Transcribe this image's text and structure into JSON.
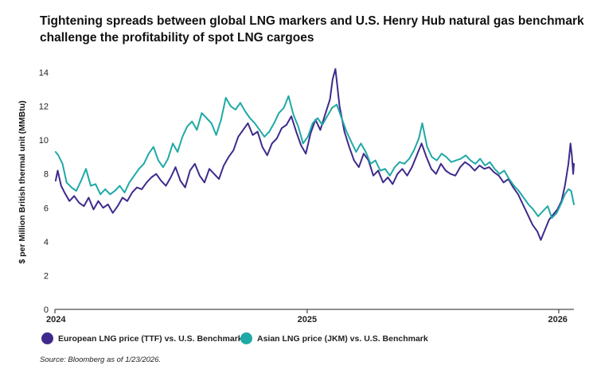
{
  "title": {
    "line1": "Tightening spreads between global LNG markers and U.S. Henry Hub natural gas benchmark",
    "line2": "challenge the profitability of spot LNG cargoes"
  },
  "source": "Source: Bloomberg as of 1/23/2026.",
  "colors": {
    "ttf": "#3f2a8c",
    "jkm": "#1fa9a6",
    "axis": "#222222"
  },
  "chart_data": {
    "type": "line",
    "title": "Tightening spreads between global LNG markers and U.S. Henry Hub natural gas benchmark challenge the profitability of spot LNG cargoes",
    "xlabel": "",
    "ylabel": "$ per Million British thermal unit (MMBtu)",
    "ylim": [
      0,
      14
    ],
    "yticks": [
      0,
      2,
      4,
      6,
      8,
      10,
      12,
      14
    ],
    "xlim": [
      "2024-01-01",
      "2026-01-23"
    ],
    "xticks": [
      {
        "label": "2024",
        "date": "2024-01-01"
      },
      {
        "label": "2025",
        "date": "2025-01-01"
      },
      {
        "label": "2026",
        "date": "2026-01-01"
      }
    ],
    "grid": false,
    "legend": "bottom",
    "series": [
      {
        "name": "European LNG price (TTF) vs. U.S. Benchmark",
        "color": "#3f2a8c",
        "points": [
          [
            "2024-01-02",
            7.6
          ],
          [
            "2024-01-05",
            8.2
          ],
          [
            "2024-01-10",
            7.3
          ],
          [
            "2024-01-15",
            6.9
          ],
          [
            "2024-01-22",
            6.4
          ],
          [
            "2024-01-29",
            6.7
          ],
          [
            "2024-02-05",
            6.3
          ],
          [
            "2024-02-12",
            6.1
          ],
          [
            "2024-02-19",
            6.6
          ],
          [
            "2024-02-26",
            5.9
          ],
          [
            "2024-03-04",
            6.4
          ],
          [
            "2024-03-11",
            6.0
          ],
          [
            "2024-03-18",
            6.2
          ],
          [
            "2024-03-25",
            5.7
          ],
          [
            "2024-04-01",
            6.1
          ],
          [
            "2024-04-08",
            6.6
          ],
          [
            "2024-04-15",
            6.4
          ],
          [
            "2024-04-22",
            6.9
          ],
          [
            "2024-04-29",
            7.2
          ],
          [
            "2024-05-06",
            7.1
          ],
          [
            "2024-05-13",
            7.5
          ],
          [
            "2024-05-20",
            7.8
          ],
          [
            "2024-05-27",
            8.0
          ],
          [
            "2024-06-03",
            7.6
          ],
          [
            "2024-06-10",
            7.3
          ],
          [
            "2024-06-17",
            7.8
          ],
          [
            "2024-06-24",
            8.4
          ],
          [
            "2024-07-01",
            7.6
          ],
          [
            "2024-07-08",
            7.2
          ],
          [
            "2024-07-15",
            8.2
          ],
          [
            "2024-07-22",
            8.6
          ],
          [
            "2024-07-29",
            7.9
          ],
          [
            "2024-08-05",
            7.5
          ],
          [
            "2024-08-12",
            8.3
          ],
          [
            "2024-08-19",
            8.0
          ],
          [
            "2024-08-26",
            7.7
          ],
          [
            "2024-09-02",
            8.5
          ],
          [
            "2024-09-09",
            9.0
          ],
          [
            "2024-09-16",
            9.4
          ],
          [
            "2024-09-23",
            10.2
          ],
          [
            "2024-09-30",
            10.6
          ],
          [
            "2024-10-07",
            11.0
          ],
          [
            "2024-10-14",
            10.3
          ],
          [
            "2024-10-21",
            10.5
          ],
          [
            "2024-10-28",
            9.6
          ],
          [
            "2024-11-04",
            9.1
          ],
          [
            "2024-11-11",
            9.8
          ],
          [
            "2024-11-18",
            10.1
          ],
          [
            "2024-11-25",
            10.7
          ],
          [
            "2024-12-02",
            10.9
          ],
          [
            "2024-12-09",
            11.4
          ],
          [
            "2024-12-16",
            10.5
          ],
          [
            "2024-12-23",
            9.7
          ],
          [
            "2024-12-30",
            9.2
          ],
          [
            "2025-01-06",
            10.4
          ],
          [
            "2025-01-13",
            11.2
          ],
          [
            "2025-01-20",
            10.6
          ],
          [
            "2025-01-27",
            11.5
          ],
          [
            "2025-02-03",
            12.4
          ],
          [
            "2025-02-07",
            13.6
          ],
          [
            "2025-02-11",
            14.2
          ],
          [
            "2025-02-17",
            12.0
          ],
          [
            "2025-02-24",
            10.5
          ],
          [
            "2025-03-03",
            9.6
          ],
          [
            "2025-03-10",
            8.8
          ],
          [
            "2025-03-17",
            8.4
          ],
          [
            "2025-03-24",
            9.2
          ],
          [
            "2025-03-31",
            8.8
          ],
          [
            "2025-04-07",
            7.9
          ],
          [
            "2025-04-14",
            8.2
          ],
          [
            "2025-04-21",
            7.5
          ],
          [
            "2025-04-28",
            7.8
          ],
          [
            "2025-05-05",
            7.4
          ],
          [
            "2025-05-12",
            8.0
          ],
          [
            "2025-05-19",
            8.3
          ],
          [
            "2025-05-26",
            7.9
          ],
          [
            "2025-06-02",
            8.4
          ],
          [
            "2025-06-09",
            9.1
          ],
          [
            "2025-06-16",
            9.8
          ],
          [
            "2025-06-23",
            9.0
          ],
          [
            "2025-06-30",
            8.3
          ],
          [
            "2025-07-07",
            8.0
          ],
          [
            "2025-07-14",
            8.6
          ],
          [
            "2025-07-21",
            8.2
          ],
          [
            "2025-07-28",
            8.0
          ],
          [
            "2025-08-04",
            7.9
          ],
          [
            "2025-08-11",
            8.4
          ],
          [
            "2025-08-18",
            8.7
          ],
          [
            "2025-08-25",
            8.5
          ],
          [
            "2025-09-01",
            8.2
          ],
          [
            "2025-09-08",
            8.5
          ],
          [
            "2025-09-15",
            8.3
          ],
          [
            "2025-09-22",
            8.4
          ],
          [
            "2025-09-29",
            8.1
          ],
          [
            "2025-10-06",
            7.9
          ],
          [
            "2025-10-13",
            7.5
          ],
          [
            "2025-10-20",
            7.7
          ],
          [
            "2025-10-27",
            7.2
          ],
          [
            "2025-11-03",
            6.8
          ],
          [
            "2025-11-10",
            6.2
          ],
          [
            "2025-11-17",
            5.6
          ],
          [
            "2025-11-24",
            5.0
          ],
          [
            "2025-12-01",
            4.6
          ],
          [
            "2025-12-06",
            4.1
          ],
          [
            "2025-12-12",
            4.7
          ],
          [
            "2025-12-18",
            5.3
          ],
          [
            "2025-12-24",
            5.6
          ],
          [
            "2025-12-30",
            5.9
          ],
          [
            "2026-01-05",
            6.4
          ],
          [
            "2026-01-10",
            7.3
          ],
          [
            "2026-01-15",
            8.6
          ],
          [
            "2026-01-18",
            9.8
          ],
          [
            "2026-01-20",
            9.1
          ],
          [
            "2026-01-22",
            8.0
          ],
          [
            "2026-01-23",
            8.6
          ]
        ]
      },
      {
        "name": "Asian LNG price (JKM) vs. U.S. Benchmark",
        "color": "#1fa9a6",
        "points": [
          [
            "2024-01-02",
            9.3
          ],
          [
            "2024-01-06",
            9.1
          ],
          [
            "2024-01-12",
            8.6
          ],
          [
            "2024-01-18",
            7.5
          ],
          [
            "2024-01-25",
            7.2
          ],
          [
            "2024-02-01",
            7.0
          ],
          [
            "2024-02-08",
            7.6
          ],
          [
            "2024-02-15",
            8.3
          ],
          [
            "2024-02-22",
            7.3
          ],
          [
            "2024-02-29",
            7.4
          ],
          [
            "2024-03-07",
            6.8
          ],
          [
            "2024-03-14",
            7.1
          ],
          [
            "2024-03-21",
            6.8
          ],
          [
            "2024-03-28",
            7.0
          ],
          [
            "2024-04-04",
            7.3
          ],
          [
            "2024-04-11",
            6.9
          ],
          [
            "2024-04-18",
            7.5
          ],
          [
            "2024-04-25",
            7.9
          ],
          [
            "2024-05-02",
            8.3
          ],
          [
            "2024-05-09",
            8.6
          ],
          [
            "2024-05-16",
            9.2
          ],
          [
            "2024-05-23",
            9.6
          ],
          [
            "2024-05-30",
            8.8
          ],
          [
            "2024-06-06",
            8.4
          ],
          [
            "2024-06-13",
            8.9
          ],
          [
            "2024-06-20",
            9.8
          ],
          [
            "2024-06-27",
            9.3
          ],
          [
            "2024-07-04",
            10.2
          ],
          [
            "2024-07-11",
            10.8
          ],
          [
            "2024-07-18",
            11.1
          ],
          [
            "2024-07-25",
            10.6
          ],
          [
            "2024-08-01",
            11.6
          ],
          [
            "2024-08-08",
            11.3
          ],
          [
            "2024-08-15",
            11.0
          ],
          [
            "2024-08-22",
            10.3
          ],
          [
            "2024-08-29",
            11.2
          ],
          [
            "2024-09-05",
            12.5
          ],
          [
            "2024-09-12",
            12.0
          ],
          [
            "2024-09-19",
            11.8
          ],
          [
            "2024-09-26",
            12.2
          ],
          [
            "2024-10-03",
            11.7
          ],
          [
            "2024-10-10",
            11.3
          ],
          [
            "2024-10-17",
            11.0
          ],
          [
            "2024-10-24",
            10.6
          ],
          [
            "2024-10-31",
            10.2
          ],
          [
            "2024-11-07",
            10.5
          ],
          [
            "2024-11-14",
            11.0
          ],
          [
            "2024-11-21",
            11.6
          ],
          [
            "2024-11-28",
            11.9
          ],
          [
            "2024-12-05",
            12.6
          ],
          [
            "2024-12-12",
            11.5
          ],
          [
            "2024-12-19",
            10.8
          ],
          [
            "2024-12-26",
            9.8
          ],
          [
            "2025-01-02",
            10.2
          ],
          [
            "2025-01-09",
            11.0
          ],
          [
            "2025-01-16",
            11.3
          ],
          [
            "2025-01-23",
            10.9
          ],
          [
            "2025-01-30",
            11.4
          ],
          [
            "2025-02-06",
            11.9
          ],
          [
            "2025-02-13",
            12.1
          ],
          [
            "2025-02-20",
            11.3
          ],
          [
            "2025-02-27",
            10.5
          ],
          [
            "2025-03-06",
            9.9
          ],
          [
            "2025-03-13",
            9.3
          ],
          [
            "2025-03-20",
            9.8
          ],
          [
            "2025-03-27",
            9.3
          ],
          [
            "2025-04-03",
            8.6
          ],
          [
            "2025-04-10",
            8.8
          ],
          [
            "2025-04-17",
            8.2
          ],
          [
            "2025-04-24",
            8.3
          ],
          [
            "2025-05-01",
            7.9
          ],
          [
            "2025-05-08",
            8.4
          ],
          [
            "2025-05-15",
            8.7
          ],
          [
            "2025-05-22",
            8.6
          ],
          [
            "2025-05-29",
            8.9
          ],
          [
            "2025-06-05",
            9.4
          ],
          [
            "2025-06-12",
            10.1
          ],
          [
            "2025-06-17",
            11.0
          ],
          [
            "2025-06-24",
            9.6
          ],
          [
            "2025-07-01",
            9.0
          ],
          [
            "2025-07-08",
            8.8
          ],
          [
            "2025-07-15",
            9.2
          ],
          [
            "2025-07-22",
            9.0
          ],
          [
            "2025-07-29",
            8.7
          ],
          [
            "2025-08-05",
            8.8
          ],
          [
            "2025-08-12",
            8.9
          ],
          [
            "2025-08-19",
            9.1
          ],
          [
            "2025-08-26",
            8.8
          ],
          [
            "2025-09-02",
            8.6
          ],
          [
            "2025-09-09",
            8.9
          ],
          [
            "2025-09-16",
            8.5
          ],
          [
            "2025-09-23",
            8.7
          ],
          [
            "2025-09-30",
            8.3
          ],
          [
            "2025-10-07",
            8.0
          ],
          [
            "2025-10-14",
            8.2
          ],
          [
            "2025-10-21",
            7.7
          ],
          [
            "2025-10-28",
            7.3
          ],
          [
            "2025-11-04",
            7.0
          ],
          [
            "2025-11-11",
            6.6
          ],
          [
            "2025-11-18",
            6.2
          ],
          [
            "2025-11-25",
            5.9
          ],
          [
            "2025-12-02",
            5.5
          ],
          [
            "2025-12-09",
            5.8
          ],
          [
            "2025-12-16",
            6.1
          ],
          [
            "2025-12-22",
            5.4
          ],
          [
            "2025-12-29",
            5.7
          ],
          [
            "2026-01-05",
            6.3
          ],
          [
            "2026-01-10",
            6.8
          ],
          [
            "2026-01-15",
            7.1
          ],
          [
            "2026-01-19",
            7.0
          ],
          [
            "2026-01-23",
            6.2
          ]
        ]
      }
    ]
  }
}
